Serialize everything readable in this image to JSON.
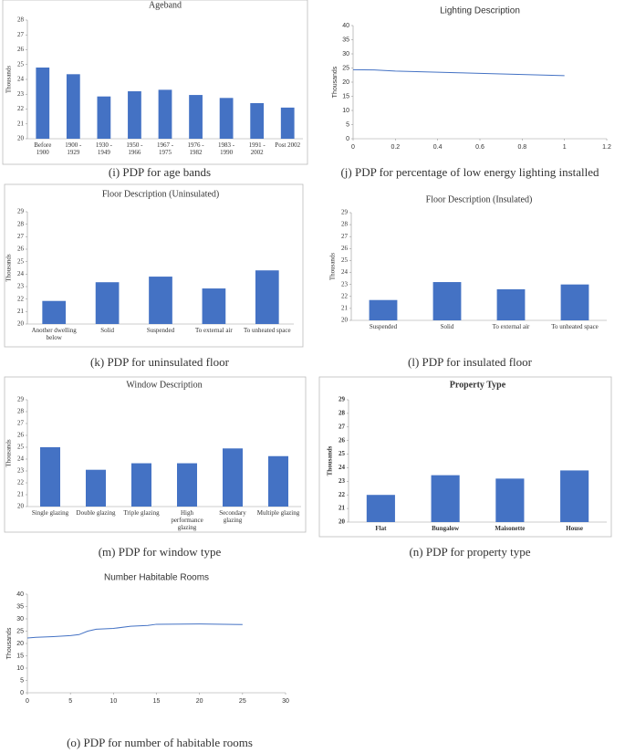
{
  "chart_data": [
    {
      "type": "bar",
      "title": "Ageband",
      "ylabel": "Thousands",
      "caption": "(i) PDP for age bands",
      "categories": [
        "Before 1900",
        "1900 - 1929",
        "1930 - 1949",
        "1950 - 1966",
        "1967 - 1975",
        "1976 - 1982",
        "1983 - 1990",
        "1991 - 2002",
        "Post 2002"
      ],
      "values": [
        24.8,
        24.35,
        22.85,
        23.2,
        23.3,
        22.95,
        22.75,
        22.4,
        22.1
      ],
      "color": "#4472c4",
      "ylim": [
        20,
        28
      ],
      "yticks": [
        20,
        21,
        22,
        23,
        24,
        25,
        26,
        27,
        28
      ],
      "grid": false
    },
    {
      "type": "line",
      "title": "Lighting Description",
      "ylabel": "Thousands",
      "caption": "(j) PDP for percentage of low energy lighting installed",
      "x": [
        0,
        0.1,
        0.2,
        0.3,
        0.4,
        0.5,
        0.6,
        0.7,
        0.8,
        0.9,
        1
      ],
      "values": [
        24.4,
        24.3,
        23.9,
        23.7,
        23.5,
        23.3,
        23.1,
        22.9,
        22.7,
        22.5,
        22.3
      ],
      "color": "#4472c4",
      "xlim": [
        0,
        1.2
      ],
      "xticks": [
        0,
        0.2,
        0.4,
        0.6,
        0.8,
        1,
        1.2
      ],
      "ylim": [
        0,
        40
      ],
      "yticks": [
        0,
        5,
        10,
        15,
        20,
        25,
        30,
        35,
        40
      ],
      "grid": false
    },
    {
      "type": "bar",
      "title": "Floor Description (Uninsulated)",
      "ylabel": "Thousands",
      "caption": "(k) PDP for uninsulated floor",
      "categories": [
        "Another dwelling below",
        "Solid",
        "Suspended",
        "To external air",
        "To unheated space"
      ],
      "values": [
        21.85,
        23.35,
        23.8,
        22.85,
        24.3
      ],
      "color": "#4472c4",
      "ylim": [
        20,
        29
      ],
      "yticks": [
        20,
        21,
        22,
        23,
        24,
        25,
        26,
        27,
        28,
        29
      ],
      "grid": false
    },
    {
      "type": "bar",
      "title": "Floor Description (Insulated)",
      "ylabel": "Thousands",
      "caption": "(l) PDP for insulated floor",
      "categories": [
        "Suspended",
        "Solid",
        "To external air",
        "To unheated space"
      ],
      "values": [
        21.7,
        23.2,
        22.6,
        23.0
      ],
      "color": "#4472c4",
      "ylim": [
        20,
        29
      ],
      "yticks": [
        20,
        21,
        22,
        23,
        24,
        25,
        26,
        27,
        28,
        29
      ],
      "grid": false
    },
    {
      "type": "bar",
      "title": "Window Description",
      "ylabel": "Thousands",
      "caption": "(m) PDP for window type",
      "categories": [
        "Single glazing",
        "Double glazing",
        "Triple glazing",
        "High performance glazing",
        "Secondary glazing",
        "Multiple glazing"
      ],
      "values": [
        25.0,
        23.1,
        23.65,
        23.65,
        24.9,
        24.25
      ],
      "color": "#4472c4",
      "ylim": [
        20,
        29
      ],
      "yticks": [
        20,
        21,
        22,
        23,
        24,
        25,
        26,
        27,
        28,
        29
      ],
      "grid": false
    },
    {
      "type": "bar",
      "title": "Property Type",
      "ylabel": "Thousands",
      "caption": "(n) PDP for property type",
      "categories": [
        "Flat",
        "Bungalow",
        "Maisonette",
        "House"
      ],
      "values": [
        22.0,
        23.45,
        23.2,
        23.8
      ],
      "color": "#4472c4",
      "ylim": [
        20,
        29
      ],
      "yticks": [
        20,
        21,
        22,
        23,
        24,
        25,
        26,
        27,
        28,
        29
      ],
      "grid": false
    },
    {
      "type": "line",
      "title": "Number Habitable Rooms",
      "ylabel": "Thousands",
      "caption": "(o) PDP for number of habitable rooms",
      "x": [
        0,
        1,
        3,
        5,
        6,
        7,
        8,
        10,
        12,
        14,
        15,
        20,
        25
      ],
      "values": [
        22.2,
        22.5,
        22.8,
        23.2,
        23.6,
        25.0,
        25.8,
        26.1,
        27.0,
        27.3,
        27.8,
        27.9,
        27.7
      ],
      "color": "#4472c4",
      "xlim": [
        0,
        30
      ],
      "xticks": [
        0,
        5,
        10,
        15,
        20,
        25,
        30
      ],
      "ylim": [
        0,
        40
      ],
      "yticks": [
        0,
        5,
        10,
        15,
        20,
        25,
        30,
        35,
        40
      ],
      "grid": false
    }
  ]
}
